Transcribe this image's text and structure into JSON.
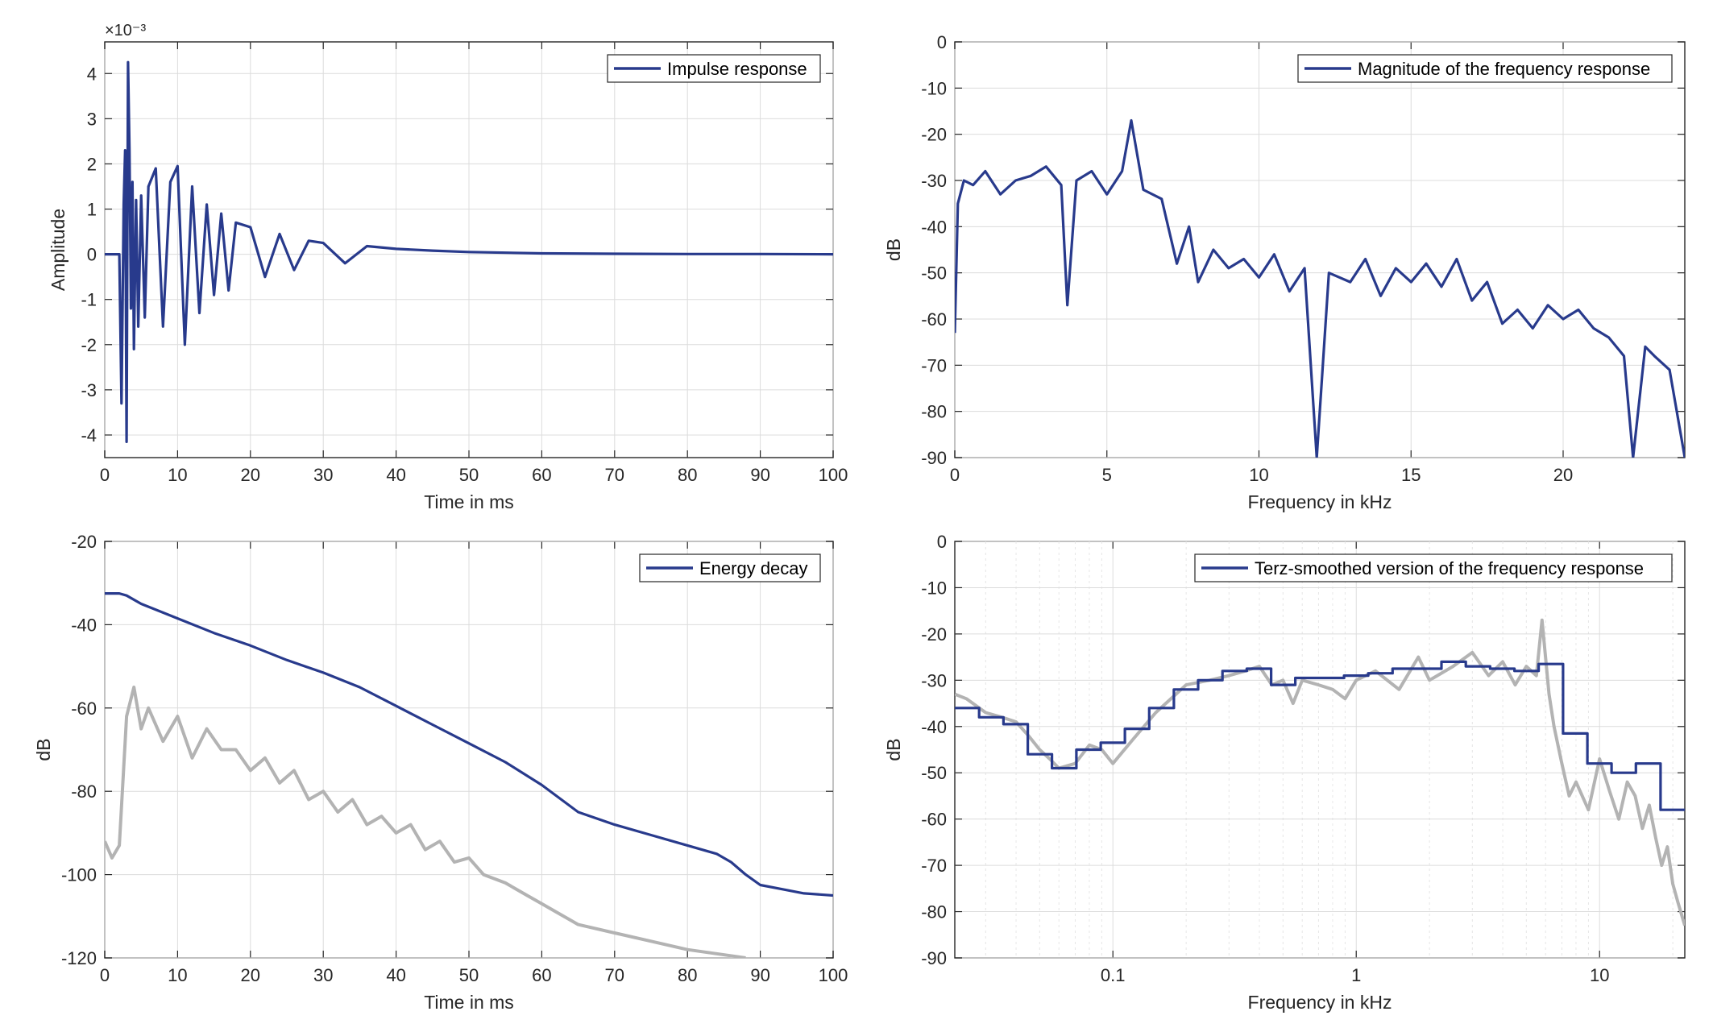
{
  "colors": {
    "primary": "#283a8c",
    "secondary": "#b3b3b3"
  },
  "chart_data": [
    {
      "id": "impulse",
      "type": "line",
      "xlabel": "Time in ms",
      "ylabel": "Amplitude",
      "xlim": [
        0,
        100
      ],
      "ylim": [
        -4.5,
        4.7
      ],
      "exponent_label": "×10⁻³",
      "xticks": [
        0,
        10,
        20,
        30,
        40,
        50,
        60,
        70,
        80,
        90,
        100
      ],
      "yticks": [
        -4,
        -3,
        -2,
        -1,
        0,
        1,
        2,
        3,
        4
      ],
      "legend": "Impulse response",
      "legend_position": "top-right",
      "grid": true,
      "series": [
        {
          "name": "Impulse response",
          "x": [
            0,
            1,
            2,
            2.3,
            2.6,
            2.8,
            3.0,
            3.2,
            3.4,
            3.6,
            3.8,
            4.0,
            4.3,
            4.6,
            5.0,
            5.5,
            6,
            7,
            8,
            9,
            10,
            11,
            12,
            13,
            14,
            15,
            16,
            17,
            18,
            20,
            22,
            24,
            26,
            28,
            30,
            33,
            36,
            40,
            45,
            50,
            60,
            70,
            80,
            90,
            100
          ],
          "y": [
            0,
            0,
            0,
            -3.3,
            1.1,
            2.3,
            -4.15,
            4.25,
            2.3,
            -1.2,
            1.6,
            -2.1,
            1.2,
            -1.6,
            1.3,
            -1.4,
            1.5,
            1.9,
            -1.6,
            1.6,
            1.95,
            -2.0,
            1.5,
            -1.3,
            1.1,
            -0.9,
            0.9,
            -0.8,
            0.7,
            0.6,
            -0.5,
            0.45,
            -0.35,
            0.3,
            0.25,
            -0.2,
            0.18,
            0.12,
            0.08,
            0.05,
            0.02,
            0.01,
            0.005,
            0.005,
            0
          ]
        }
      ]
    },
    {
      "id": "magnitude",
      "type": "line",
      "xlabel": "Frequency in kHz",
      "ylabel": "dB",
      "xlim": [
        0,
        24
      ],
      "ylim": [
        -90,
        0
      ],
      "xticks": [
        0,
        5,
        10,
        15,
        20
      ],
      "yticks": [
        0,
        -10,
        -20,
        -30,
        -40,
        -50,
        -60,
        -70,
        -80,
        -90
      ],
      "legend": "Magnitude of the frequency response",
      "legend_position": "top-right",
      "grid": true,
      "series": [
        {
          "name": "Magnitude of the frequency response",
          "x": [
            0,
            0.1,
            0.3,
            0.6,
            1.0,
            1.5,
            2.0,
            2.5,
            3.0,
            3.5,
            3.7,
            4.0,
            4.5,
            5.0,
            5.5,
            5.8,
            6.2,
            6.8,
            7.3,
            7.7,
            8.0,
            8.5,
            9.0,
            9.5,
            10.0,
            10.5,
            11.0,
            11.5,
            11.9,
            12.3,
            13.0,
            13.5,
            14.0,
            14.5,
            15.0,
            15.5,
            16.0,
            16.5,
            17.0,
            17.5,
            18.0,
            18.5,
            19.0,
            19.5,
            20.0,
            20.5,
            21.0,
            21.5,
            22.0,
            22.3,
            22.7,
            23.0,
            23.5,
            24.0
          ],
          "y": [
            -63,
            -35,
            -30,
            -31,
            -28,
            -33,
            -30,
            -29,
            -27,
            -31,
            -57,
            -30,
            -28,
            -33,
            -28,
            -17,
            -32,
            -34,
            -48,
            -40,
            -52,
            -45,
            -49,
            -47,
            -51,
            -46,
            -54,
            -49,
            -90,
            -50,
            -52,
            -47,
            -55,
            -49,
            -52,
            -48,
            -53,
            -47,
            -56,
            -52,
            -61,
            -58,
            -62,
            -57,
            -60,
            -58,
            -62,
            -64,
            -68,
            -90,
            -66,
            -68,
            -71,
            -90
          ]
        }
      ]
    },
    {
      "id": "decay",
      "type": "line",
      "xlabel": "Time in ms",
      "ylabel": "dB",
      "xlim": [
        0,
        100
      ],
      "ylim": [
        -120,
        -20
      ],
      "xticks": [
        0,
        10,
        20,
        30,
        40,
        50,
        60,
        70,
        80,
        90,
        100
      ],
      "yticks": [
        -20,
        -40,
        -60,
        -80,
        -100,
        -120
      ],
      "legend": "Energy decay",
      "legend_position": "top-right",
      "grid": true,
      "series": [
        {
          "name": "Energy decay",
          "x": [
            0,
            2,
            3,
            5,
            10,
            15,
            20,
            25,
            30,
            35,
            40,
            45,
            50,
            55,
            60,
            65,
            70,
            75,
            80,
            84,
            86,
            88,
            90,
            93,
            96,
            100
          ],
          "y": [
            -32.5,
            -32.5,
            -33,
            -35,
            -38.5,
            -42,
            -45,
            -48.5,
            -51.5,
            -55,
            -59.5,
            -64,
            -68.5,
            -73,
            -78.5,
            -85,
            -88,
            -90.5,
            -93,
            -95,
            -97,
            -100,
            -102.5,
            -103.5,
            -104.5,
            -105
          ]
        },
        {
          "name": "",
          "x": [
            0,
            1,
            2,
            3,
            4,
            5,
            6,
            8,
            10,
            12,
            14,
            16,
            18,
            20,
            22,
            24,
            26,
            28,
            30,
            32,
            34,
            36,
            38,
            40,
            42,
            44,
            46,
            48,
            50,
            52,
            55,
            58,
            60,
            62,
            65,
            70,
            75,
            80,
            84,
            88
          ],
          "y": [
            -92,
            -96,
            -93,
            -62,
            -55,
            -65,
            -60,
            -68,
            -62,
            -72,
            -65,
            -70,
            -70,
            -75,
            -72,
            -78,
            -75,
            -82,
            -80,
            -85,
            -82,
            -88,
            -86,
            -90,
            -88,
            -94,
            -92,
            -97,
            -96,
            -100,
            -102,
            -105,
            -107,
            -109,
            -112,
            -114,
            -116,
            -118,
            -119,
            -120
          ]
        }
      ]
    },
    {
      "id": "terz",
      "type": "line",
      "xscale": "log",
      "xlabel": "Frequency in kHz",
      "ylabel": "dB",
      "xlim": [
        0.0224,
        22.4
      ],
      "ylim": [
        -90,
        0
      ],
      "xticks": [
        0.1,
        1,
        10
      ],
      "xticklabels": [
        "0.1",
        "1",
        "10"
      ],
      "yticks": [
        0,
        -10,
        -20,
        -30,
        -40,
        -50,
        -60,
        -70,
        -80,
        -90
      ],
      "legend": "Terz-smoothed version of the frequency response",
      "legend_position": "top-right",
      "grid": true,
      "series": [
        {
          "name": "Terz-smoothed version of the frequency response",
          "x": [
            0.0224,
            0.0282,
            0.0355,
            0.0447,
            0.0562,
            0.0708,
            0.0891,
            0.112,
            0.141,
            0.178,
            0.224,
            0.282,
            0.355,
            0.447,
            0.562,
            0.708,
            0.891,
            1.12,
            1.41,
            1.78,
            2.24,
            2.82,
            3.55,
            4.47,
            5.62,
            7.08,
            8.91,
            11.2,
            14.1,
            17.8,
            22.4
          ],
          "y": [
            -36,
            -38,
            -39.5,
            -46,
            -49,
            -45,
            -43.5,
            -40.5,
            -36,
            -32,
            -30,
            -28,
            -27.5,
            -31,
            -29.5,
            -29.5,
            -29,
            -28.5,
            -27.5,
            -27.5,
            -26,
            -27,
            -27.5,
            -28,
            -26.5,
            -41.5,
            -48,
            -50,
            -48,
            -58,
            -58
          ]
        },
        {
          "name": "",
          "x": [
            0.0224,
            0.025,
            0.03,
            0.035,
            0.04,
            0.045,
            0.05,
            0.055,
            0.06,
            0.07,
            0.08,
            0.09,
            0.1,
            0.12,
            0.15,
            0.2,
            0.25,
            0.3,
            0.35,
            0.4,
            0.45,
            0.5,
            0.55,
            0.6,
            0.7,
            0.8,
            0.9,
            1.0,
            1.2,
            1.5,
            1.8,
            2.0,
            2.5,
            3.0,
            3.5,
            4.0,
            4.5,
            5.0,
            5.5,
            5.8,
            6.2,
            6.5,
            7.0,
            7.5,
            8.0,
            9.0,
            10,
            11,
            12,
            13,
            14,
            15,
            16,
            17,
            18,
            19,
            20,
            21,
            22.4
          ],
          "y": [
            -33,
            -34,
            -37,
            -38,
            -39,
            -42,
            -45,
            -47,
            -49,
            -48,
            -44,
            -45,
            -48,
            -43,
            -37,
            -31,
            -30,
            -29,
            -28,
            -27,
            -31,
            -30,
            -35,
            -30,
            -31,
            -32,
            -34,
            -30,
            -28,
            -32,
            -25,
            -30,
            -27,
            -24,
            -29,
            -26,
            -31,
            -27,
            -29,
            -17,
            -33,
            -40,
            -48,
            -55,
            -52,
            -58,
            -47,
            -54,
            -60,
            -52,
            -55,
            -62,
            -57,
            -64,
            -70,
            -66,
            -74,
            -78,
            -83
          ]
        }
      ]
    }
  ]
}
